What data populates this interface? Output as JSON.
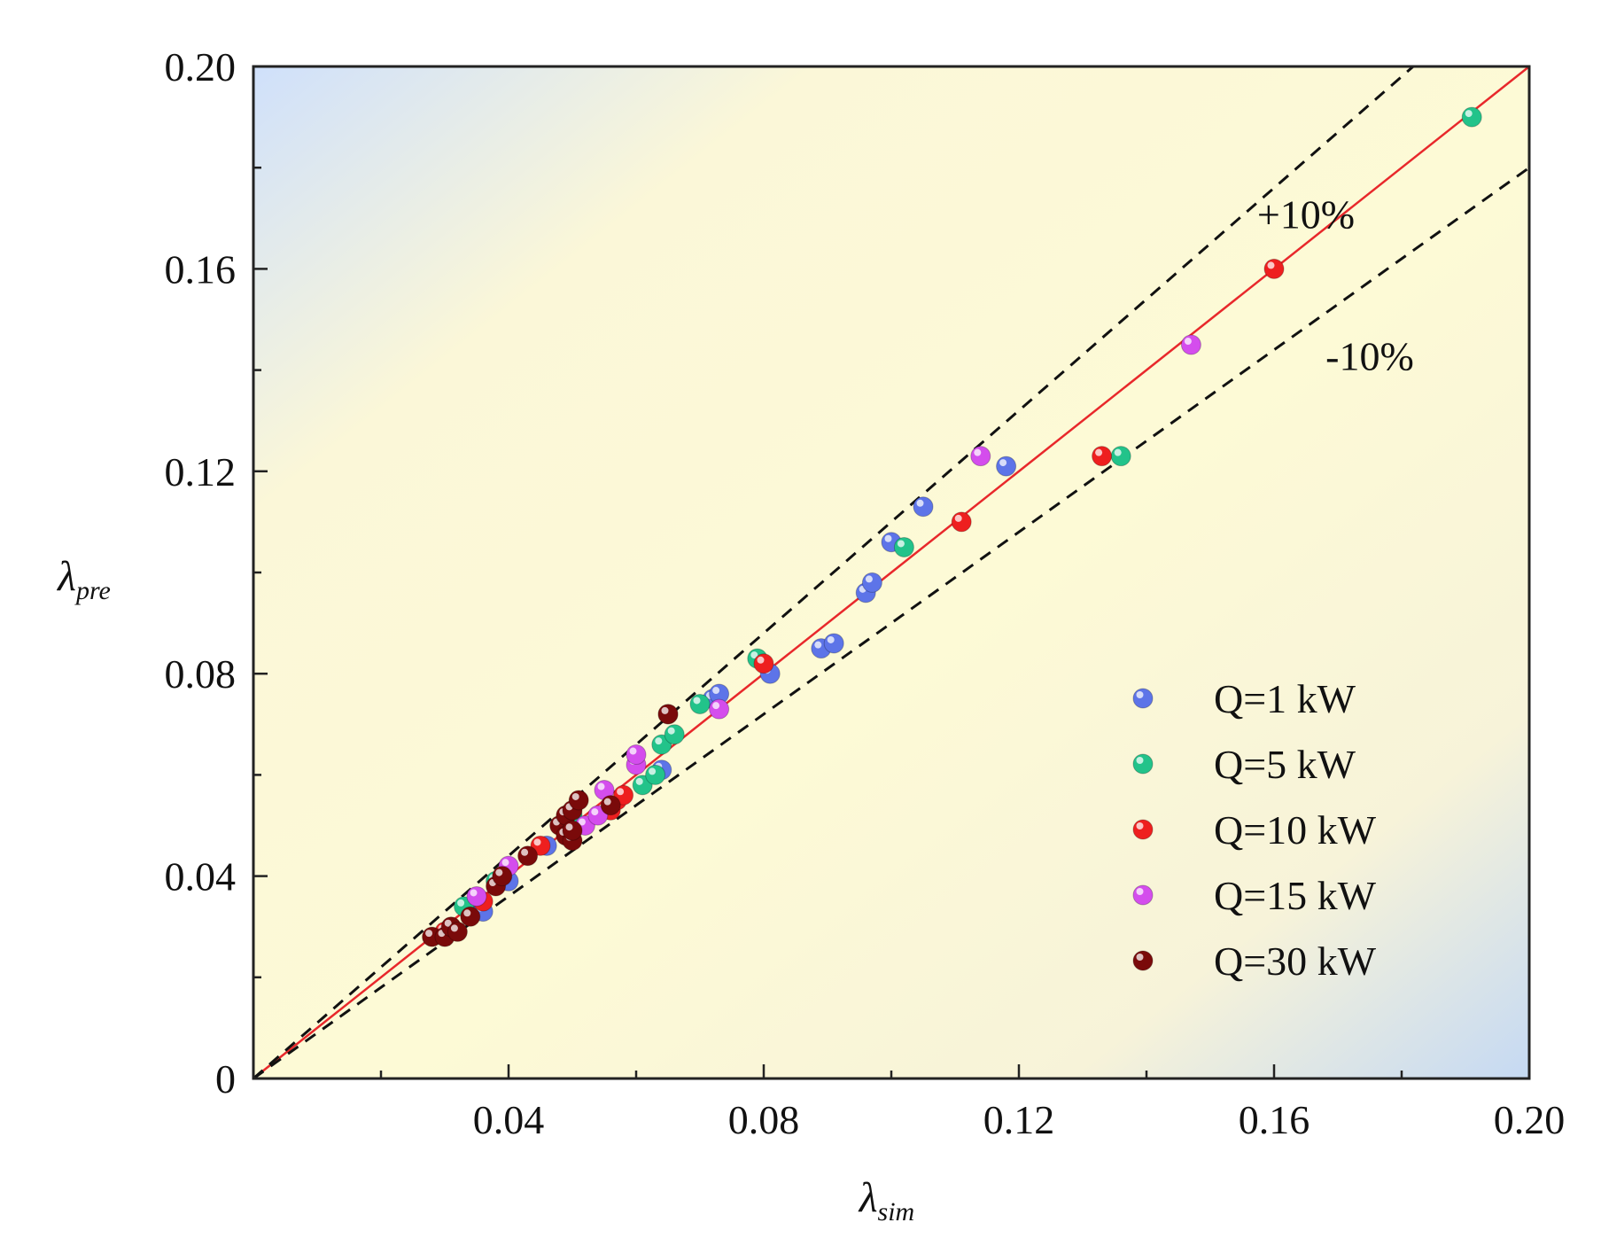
{
  "chart_data": {
    "type": "scatter",
    "title": "",
    "xlabel": {
      "symbol": "λ",
      "sub": "sim"
    },
    "ylabel": {
      "symbol": "λ",
      "sub": "pre"
    },
    "xlim": [
      0,
      0.2
    ],
    "ylim": [
      0,
      0.2
    ],
    "x_ticks": [
      0.04,
      0.08,
      0.12,
      0.16,
      0.2
    ],
    "x_tick_labels": [
      "0.04",
      "0.08",
      "0.12",
      "0.16",
      "0.20"
    ],
    "y_ticks": [
      0,
      0.04,
      0.08,
      0.12,
      0.16,
      0.2
    ],
    "y_tick_labels": [
      "0",
      "0.04",
      "0.08",
      "0.12",
      "0.16",
      "0.20"
    ],
    "minor_step": 0.02,
    "reference_lines": [
      {
        "name": "y = x",
        "slope": 1.0,
        "style": "solid",
        "color": "#e8282b"
      },
      {
        "name": "+10%",
        "slope": 1.1,
        "style": "dashed",
        "color": "#111111"
      },
      {
        "name": "-10%",
        "slope": 0.9,
        "style": "dashed",
        "color": "#111111"
      }
    ],
    "annotations": [
      {
        "text": "+10%",
        "x": 0.165,
        "y": 0.168
      },
      {
        "text": "-10%",
        "x": 0.175,
        "y": 0.14
      }
    ],
    "legend": {
      "position": "bottom-right"
    },
    "series": [
      {
        "name": "Q=1 kW",
        "color": "#5d74e8",
        "points": [
          [
            0.034,
            0.033
          ],
          [
            0.036,
            0.033
          ],
          [
            0.04,
            0.039
          ],
          [
            0.046,
            0.046
          ],
          [
            0.064,
            0.061
          ],
          [
            0.072,
            0.075
          ],
          [
            0.073,
            0.076
          ],
          [
            0.081,
            0.08
          ],
          [
            0.089,
            0.085
          ],
          [
            0.091,
            0.086
          ],
          [
            0.096,
            0.096
          ],
          [
            0.097,
            0.098
          ],
          [
            0.1,
            0.106
          ],
          [
            0.105,
            0.113
          ],
          [
            0.118,
            0.121
          ]
        ]
      },
      {
        "name": "Q=5 kW",
        "color": "#22c38a",
        "points": [
          [
            0.033,
            0.034
          ],
          [
            0.038,
            0.039
          ],
          [
            0.05,
            0.052
          ],
          [
            0.061,
            0.058
          ],
          [
            0.063,
            0.06
          ],
          [
            0.064,
            0.066
          ],
          [
            0.066,
            0.068
          ],
          [
            0.07,
            0.074
          ],
          [
            0.079,
            0.083
          ],
          [
            0.102,
            0.105
          ],
          [
            0.136,
            0.123
          ],
          [
            0.191,
            0.19
          ]
        ]
      },
      {
        "name": "Q=10 kW",
        "color": "#ee1f1f",
        "points": [
          [
            0.03,
            0.029
          ],
          [
            0.036,
            0.035
          ],
          [
            0.045,
            0.046
          ],
          [
            0.056,
            0.053
          ],
          [
            0.057,
            0.055
          ],
          [
            0.058,
            0.056
          ],
          [
            0.065,
            0.072
          ],
          [
            0.08,
            0.082
          ],
          [
            0.111,
            0.11
          ],
          [
            0.133,
            0.123
          ],
          [
            0.16,
            0.16
          ]
        ]
      },
      {
        "name": "Q=15 kW",
        "color": "#d44ded",
        "points": [
          [
            0.035,
            0.036
          ],
          [
            0.04,
            0.042
          ],
          [
            0.052,
            0.05
          ],
          [
            0.054,
            0.052
          ],
          [
            0.055,
            0.057
          ],
          [
            0.06,
            0.062
          ],
          [
            0.06,
            0.064
          ],
          [
            0.073,
            0.073
          ],
          [
            0.114,
            0.123
          ],
          [
            0.147,
            0.145
          ]
        ]
      },
      {
        "name": "Q=30 kW",
        "color": "#7a0a0a",
        "points": [
          [
            0.028,
            0.028
          ],
          [
            0.03,
            0.028
          ],
          [
            0.031,
            0.03
          ],
          [
            0.032,
            0.029
          ],
          [
            0.034,
            0.032
          ],
          [
            0.038,
            0.038
          ],
          [
            0.039,
            0.04
          ],
          [
            0.043,
            0.044
          ],
          [
            0.048,
            0.05
          ],
          [
            0.049,
            0.048
          ],
          [
            0.049,
            0.052
          ],
          [
            0.05,
            0.047
          ],
          [
            0.05,
            0.049
          ],
          [
            0.05,
            0.053
          ],
          [
            0.051,
            0.055
          ],
          [
            0.056,
            0.054
          ],
          [
            0.065,
            0.072
          ]
        ]
      }
    ]
  }
}
